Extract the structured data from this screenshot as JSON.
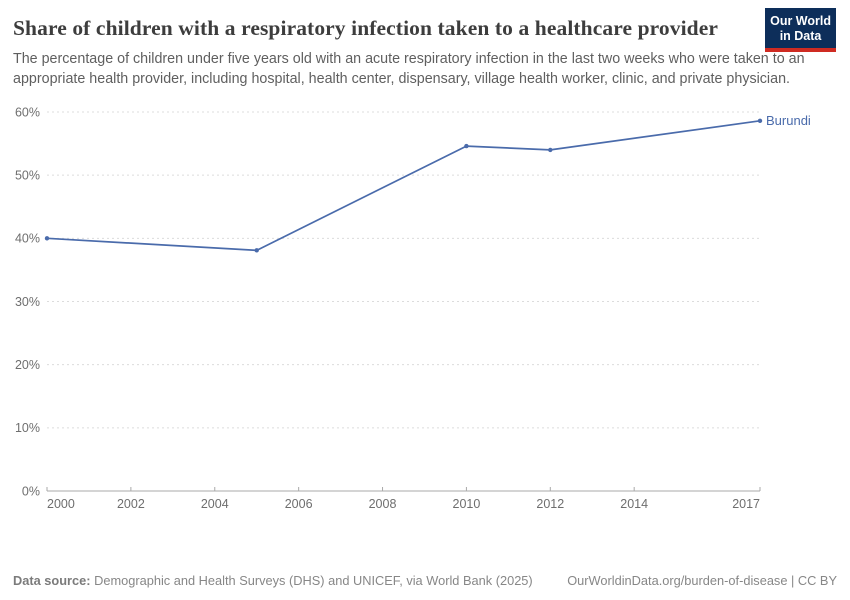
{
  "header": {
    "title": "Share of children with a respiratory infection taken to a healthcare provider",
    "subtitle": "The percentage of children under five years old with an acute respiratory infection in the last two weeks who were taken to an appropriate health provider, including hospital, health center, dispensary, village health worker, clinic, and private physician.",
    "logo": {
      "line1": "Our World",
      "line2": "in Data"
    }
  },
  "chart_data": {
    "type": "line",
    "title": "Share of children with a respiratory infection taken to a healthcare provider",
    "series": [
      {
        "name": "Burundi",
        "x": [
          2000,
          2005,
          2010,
          2012,
          2017
        ],
        "values": [
          40.0,
          38.1,
          54.6,
          54.0,
          58.6
        ]
      }
    ],
    "unit": "%",
    "xlabel": "",
    "ylabel": "",
    "xlim": [
      2000,
      2017
    ],
    "ylim": [
      0,
      60
    ],
    "x_ticks": [
      2000,
      2002,
      2004,
      2006,
      2008,
      2010,
      2012,
      2014,
      2017
    ],
    "y_ticks": [
      0,
      10,
      20,
      30,
      40,
      50,
      60
    ],
    "y_tick_suffix": "%",
    "grid": "horizontal-dashed",
    "legend_position": "end-of-line",
    "end_label": "Burundi",
    "colors": {
      "line": "#4a6bab",
      "grid": "#dcdcdc",
      "axis": "#a9a9a9",
      "tick_text": "#6e6e6e"
    }
  },
  "footer": {
    "source_label": "Data source:",
    "source_text": "Demographic and Health Surveys (DHS) and UNICEF, via World Bank (2025)",
    "link_text": "OurWorldinData.org/burden-of-disease | CC BY"
  }
}
